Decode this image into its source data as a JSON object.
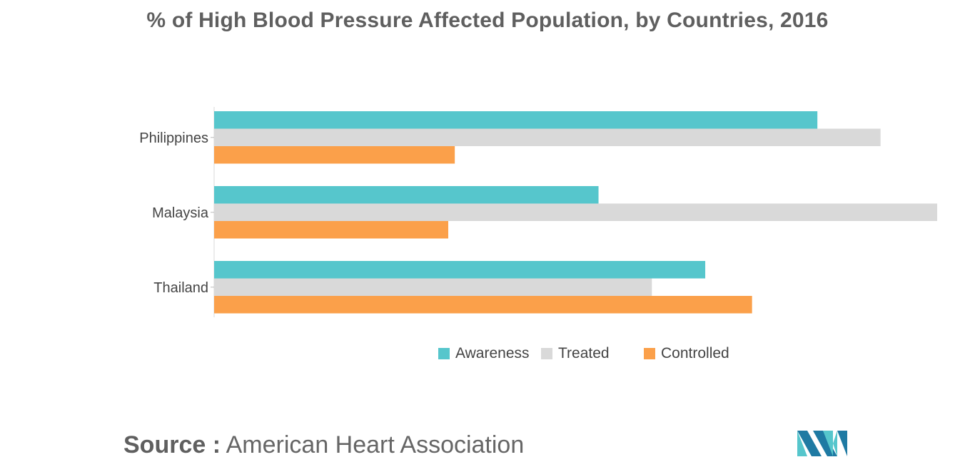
{
  "chart_data": {
    "type": "bar",
    "orientation": "horizontal",
    "title": "% of High Blood Pressure Affected Population, by Countries, 2016",
    "categories": [
      "Philippines",
      "Malaysia",
      "Thailand"
    ],
    "series": [
      {
        "name": "Awareness",
        "color": "#56c6cc",
        "values": [
          55.4,
          35.3,
          45.1
        ]
      },
      {
        "name": "Treated",
        "color": "#d9d9d9",
        "values": [
          61.2,
          66.4,
          40.2
        ]
      },
      {
        "name": "Controlled",
        "color": "#fba04a",
        "values": [
          22.1,
          21.5,
          49.4
        ]
      }
    ],
    "xlim": [
      0,
      66.4
    ],
    "xlabel": "",
    "ylabel": "",
    "grid": false,
    "legend_position": "bottom"
  },
  "source": {
    "prefix": "Source :",
    "text": "American Heart Association"
  },
  "logo": {
    "name": "brand-logo-icon"
  }
}
